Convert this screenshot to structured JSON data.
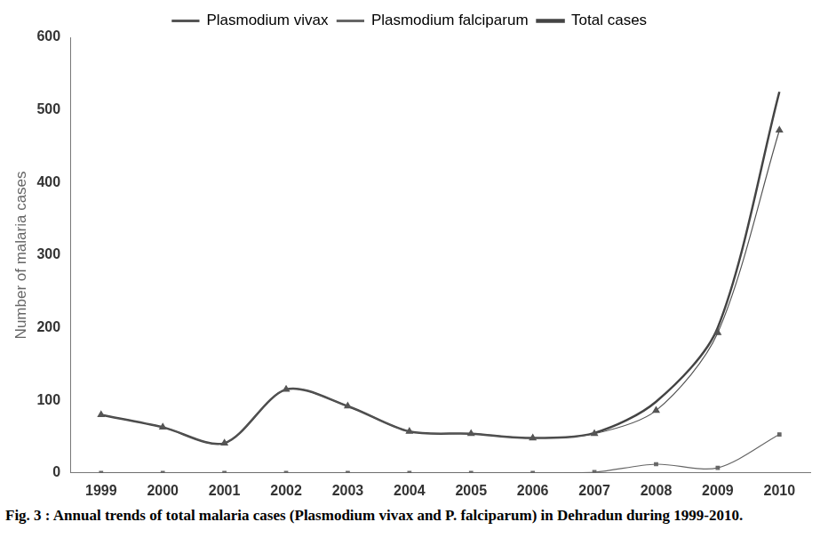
{
  "chart_data": {
    "type": "line",
    "title": "Fig. 3 : Annual trends of total malaria cases (Plasmodium vivax and P. falciparum) in Dehradun during 1999-2010.",
    "y_label": "Number of malaria cases",
    "categories": [
      "1999",
      "2000",
      "2001",
      "2002",
      "2003",
      "2004",
      "2005",
      "2006",
      "2007",
      "2008",
      "2009",
      "2010"
    ],
    "series": [
      {
        "name": "Plasmodium vivax",
        "color": "#555555",
        "marker": "triangle",
        "line_style": "solid",
        "values": [
          80,
          63,
          41,
          115,
          92,
          57,
          54,
          48,
          54,
          86,
          193,
          472
        ]
      },
      {
        "name": "Plasmodium falciparum",
        "color": "#666666",
        "marker": "square",
        "line_style": "solid",
        "values": [
          0,
          0,
          0,
          0,
          0,
          0,
          0,
          0,
          1,
          12,
          7,
          53
        ]
      },
      {
        "name": "Total cases",
        "color": "#444444",
        "marker": "none",
        "line_style": "solid",
        "values": [
          80,
          63,
          41,
          115,
          92,
          57,
          54,
          48,
          55,
          98,
          200,
          525
        ]
      }
    ],
    "ylim": [
      0,
      600
    ],
    "yticks": [
      0,
      100,
      200,
      300,
      400,
      500,
      600
    ],
    "grid": false,
    "legend": "top"
  }
}
